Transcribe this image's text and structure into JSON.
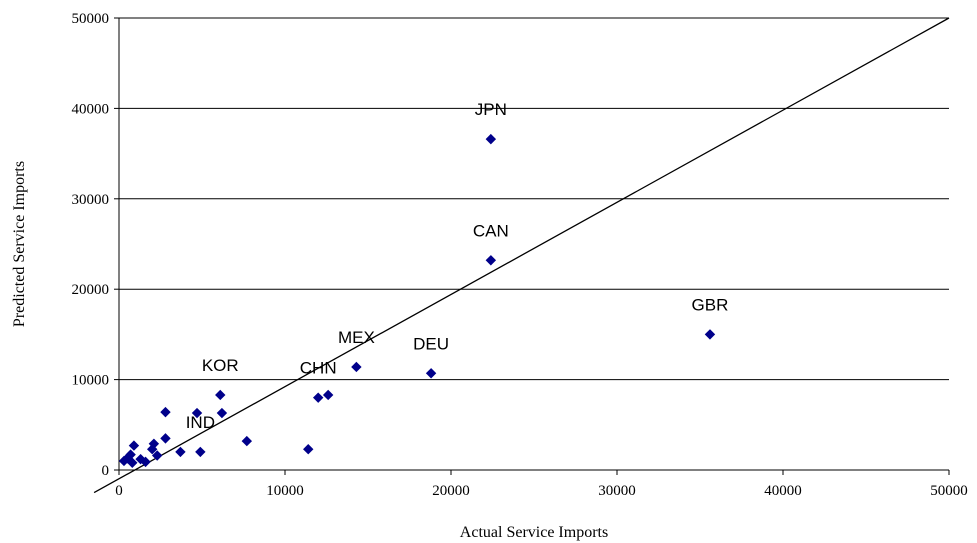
{
  "chart_data": {
    "type": "scatter",
    "title": "",
    "xlabel": "Actual Service Imports",
    "ylabel": "Predicted Service Imports",
    "xlim": [
      0,
      50000
    ],
    "ylim": [
      0,
      50000
    ],
    "xticks": [
      0,
      10000,
      20000,
      30000,
      40000,
      50000
    ],
    "yticks": [
      0,
      10000,
      20000,
      30000,
      40000,
      50000
    ],
    "grid": "horizontal",
    "marker_color": "#00008B",
    "reference_line": {
      "from": [
        -1500,
        -2500
      ],
      "to": [
        50000,
        50000
      ]
    },
    "points": [
      {
        "x": 22400,
        "y": 36600,
        "label": "JPN"
      },
      {
        "x": 22400,
        "y": 23200,
        "label": "CAN"
      },
      {
        "x": 35600,
        "y": 15000,
        "label": "GBR"
      },
      {
        "x": 18800,
        "y": 10700,
        "label": "DEU"
      },
      {
        "x": 14300,
        "y": 11400,
        "label": "MEX"
      },
      {
        "x": 12000,
        "y": 8000,
        "label": "CHN"
      },
      {
        "x": 6100,
        "y": 8300,
        "label": "KOR"
      },
      {
        "x": 4900,
        "y": 2000,
        "label": "IND"
      },
      {
        "x": 12600,
        "y": 8300
      },
      {
        "x": 11400,
        "y": 2300
      },
      {
        "x": 7700,
        "y": 3200
      },
      {
        "x": 6200,
        "y": 6300
      },
      {
        "x": 4700,
        "y": 6300
      },
      {
        "x": 3700,
        "y": 2000
      },
      {
        "x": 2800,
        "y": 6400
      },
      {
        "x": 2800,
        "y": 3500
      },
      {
        "x": 2100,
        "y": 2900
      },
      {
        "x": 2000,
        "y": 2300
      },
      {
        "x": 2300,
        "y": 1600
      },
      {
        "x": 1600,
        "y": 900
      },
      {
        "x": 1300,
        "y": 1200
      },
      {
        "x": 900,
        "y": 2700
      },
      {
        "x": 700,
        "y": 1700
      },
      {
        "x": 500,
        "y": 1300
      },
      {
        "x": 300,
        "y": 1000
      },
      {
        "x": 800,
        "y": 800
      }
    ]
  }
}
